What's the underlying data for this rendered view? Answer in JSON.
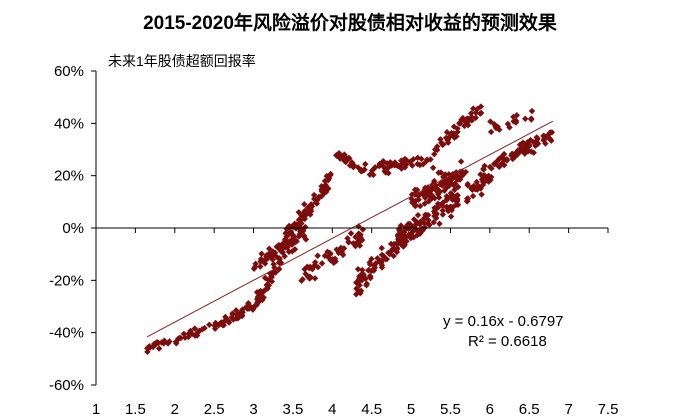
{
  "chart_data": {
    "type": "scatter",
    "title": "2015-2020年风险溢价对股债相对收益的预测效果",
    "ylabel": "未来1年股债超额回报率",
    "xlabel": "",
    "xlim": [
      1,
      7.5
    ],
    "ylim": [
      -0.6,
      0.6
    ],
    "x_ticks": [
      "1",
      "1.5",
      "2",
      "2.5",
      "3",
      "3.5",
      "4",
      "4.5",
      "5",
      "5.5",
      "6",
      "6.5",
      "7",
      "7.5"
    ],
    "y_ticks": [
      "60%",
      "40%",
      "20%",
      "0%",
      "-20%",
      "-40%",
      "-60%"
    ],
    "grid": false,
    "legend": "none",
    "marker": "diamond",
    "point_color": "#7b0d0d",
    "trendline": {
      "slope": 0.16,
      "intercept": -0.6797,
      "x_range": [
        1.65,
        6.8
      ],
      "color": "#8b2020",
      "equation": "y = 0.16x - 0.6797",
      "r_squared": "R² = 0.6618"
    },
    "clusters": [
      {
        "x_range": [
          1.65,
          2.5
        ],
        "y_center": [
          -0.46,
          -0.38
        ],
        "spread": 0.025,
        "count": 40
      },
      {
        "x_range": [
          2.5,
          3.0
        ],
        "y_center": [
          -0.38,
          -0.3
        ],
        "spread": 0.03,
        "count": 45
      },
      {
        "x_range": [
          3.0,
          3.35
        ],
        "y_center": [
          -0.3,
          -0.12
        ],
        "spread": 0.05,
        "count": 45
      },
      {
        "x_range": [
          3.0,
          3.7
        ],
        "y_center": [
          -0.14,
          -0.02
        ],
        "spread": 0.05,
        "count": 60
      },
      {
        "x_range": [
          3.4,
          4.0
        ],
        "y_center": [
          -0.05,
          0.2
        ],
        "spread": 0.05,
        "count": 75
      },
      {
        "x_range": [
          3.6,
          4.4
        ],
        "y_center": [
          -0.2,
          -0.02
        ],
        "spread": 0.06,
        "count": 55
      },
      {
        "x_range": [
          4.0,
          4.3
        ],
        "y_center": [
          0.29,
          0.24
        ],
        "spread": 0.025,
        "count": 25
      },
      {
        "x_range": [
          4.3,
          5.0
        ],
        "y_center": [
          -0.22,
          0.0
        ],
        "spread": 0.07,
        "count": 75
      },
      {
        "x_range": [
          4.3,
          5.3
        ],
        "y_center": [
          0.22,
          0.26
        ],
        "spread": 0.04,
        "count": 55
      },
      {
        "x_range": [
          4.8,
          5.6
        ],
        "y_center": [
          -0.05,
          0.12
        ],
        "spread": 0.07,
        "count": 110
      },
      {
        "x_range": [
          5.0,
          5.7
        ],
        "y_center": [
          0.1,
          0.22
        ],
        "spread": 0.06,
        "count": 95
      },
      {
        "x_range": [
          5.3,
          5.9
        ],
        "y_center": [
          0.3,
          0.46
        ],
        "spread": 0.04,
        "count": 45
      },
      {
        "x_range": [
          5.7,
          6.1
        ],
        "y_center": [
          0.12,
          0.22
        ],
        "spread": 0.05,
        "count": 35
      },
      {
        "x_range": [
          5.9,
          6.8
        ],
        "y_center": [
          0.22,
          0.36
        ],
        "spread": 0.045,
        "count": 70
      },
      {
        "x_range": [
          6.0,
          6.6
        ],
        "y_center": [
          0.38,
          0.44
        ],
        "spread": 0.03,
        "count": 20
      }
    ]
  }
}
